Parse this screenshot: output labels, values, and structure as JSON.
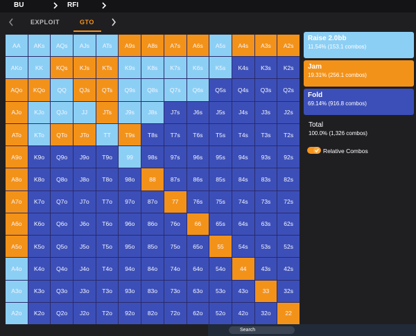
{
  "header": {
    "position": "BU",
    "spot": "RFI"
  },
  "tabs": [
    "EXPLOIT",
    "GTO"
  ],
  "grid": {
    "rows": [
      [
        {
          "label": "AA",
          "color": "#8ccff5"
        },
        {
          "label": "AKs",
          "color": "#8ccff5"
        },
        {
          "label": "AQs",
          "color": "#8ccff5"
        },
        {
          "label": "AJs",
          "color": "#8ccff5"
        },
        {
          "label": "ATs",
          "color": "#8ccff5"
        },
        {
          "label": "A9s",
          "color": "#f39219"
        },
        {
          "label": "A8s",
          "color": "#f39219"
        },
        {
          "label": "A7s",
          "color": "#f39219"
        },
        {
          "label": "A6s",
          "color": "#f39219"
        },
        {
          "label": "A5s",
          "color": "#8ccff5"
        },
        {
          "label": "A4s",
          "color": "#f39219"
        },
        {
          "label": "A3s",
          "color": "#f39219"
        },
        {
          "label": "A2s",
          "color": "#f39219"
        }
      ],
      [
        {
          "label": "AKo",
          "color": "#8ccff5"
        },
        {
          "label": "KK",
          "color": "#8ccff5"
        },
        {
          "label": "KQs",
          "color": "#f39219"
        },
        {
          "label": "KJs",
          "color": "#f39219"
        },
        {
          "label": "KTs",
          "color": "#f39219"
        },
        {
          "label": "K9s",
          "color": "#8ccff5"
        },
        {
          "label": "K8s",
          "color": "#8ccff5"
        },
        {
          "label": "K7s",
          "color": "#8ccff5"
        },
        {
          "label": "K6s",
          "color": "#8ccff5"
        },
        {
          "label": "K5s",
          "color": "#8ccff5"
        },
        {
          "label": "K4s",
          "color": "#3c4fb8"
        },
        {
          "label": "K3s",
          "color": "#3c4fb8"
        },
        {
          "label": "K2s",
          "color": "#3c4fb8"
        }
      ],
      [
        {
          "label": "AQo",
          "color": "#f39219"
        },
        {
          "label": "KQo",
          "color": "#f39219"
        },
        {
          "label": "QQ",
          "color": "#8ccff5"
        },
        {
          "label": "QJs",
          "color": "#f39219"
        },
        {
          "label": "QTs",
          "color": "#f39219"
        },
        {
          "label": "Q9s",
          "color": "#8ccff5"
        },
        {
          "label": "Q8s",
          "color": "#8ccff5"
        },
        {
          "label": "Q7s",
          "color": "#8ccff5"
        },
        {
          "label": "Q6s",
          "color": "#8ccff5"
        },
        {
          "label": "Q5s",
          "color": "#3c4fb8"
        },
        {
          "label": "Q4s",
          "color": "#3c4fb8"
        },
        {
          "label": "Q3s",
          "color": "#3c4fb8"
        },
        {
          "label": "Q2s",
          "color": "#3c4fb8"
        }
      ],
      [
        {
          "label": "AJo",
          "color": "#f39219"
        },
        {
          "label": "KJo",
          "color": "#8ccff5"
        },
        {
          "label": "QJo",
          "color": "#8ccff5"
        },
        {
          "label": "JJ",
          "color": "#8ccff5"
        },
        {
          "label": "JTs",
          "color": "#f39219"
        },
        {
          "label": "J9s",
          "color": "#8ccff5"
        },
        {
          "label": "J8s",
          "color": "#8ccff5"
        },
        {
          "label": "J7s",
          "color": "#3c4fb8"
        },
        {
          "label": "J6s",
          "color": "#3c4fb8"
        },
        {
          "label": "J5s",
          "color": "#3c4fb8"
        },
        {
          "label": "J4s",
          "color": "#3c4fb8"
        },
        {
          "label": "J3s",
          "color": "#3c4fb8"
        },
        {
          "label": "J2s",
          "color": "#3c4fb8"
        }
      ],
      [
        {
          "label": "ATo",
          "color": "#f39219"
        },
        {
          "label": "KTo",
          "color": "#8ccff5"
        },
        {
          "label": "QTo",
          "color": "#f39219"
        },
        {
          "label": "JTo",
          "color": "#f39219"
        },
        {
          "label": "TT",
          "color": "#8ccff5"
        },
        {
          "label": "T9s",
          "color": "#f39219"
        },
        {
          "label": "T8s",
          "color": "#3c4fb8"
        },
        {
          "label": "T7s",
          "color": "#3c4fb8"
        },
        {
          "label": "T6s",
          "color": "#3c4fb8"
        },
        {
          "label": "T5s",
          "color": "#3c4fb8"
        },
        {
          "label": "T4s",
          "color": "#3c4fb8"
        },
        {
          "label": "T3s",
          "color": "#3c4fb8"
        },
        {
          "label": "T2s",
          "color": "#3c4fb8"
        }
      ],
      [
        {
          "label": "A9o",
          "color": "#f39219"
        },
        {
          "label": "K9o",
          "color": "#3c4fb8"
        },
        {
          "label": "Q9o",
          "color": "#3c4fb8"
        },
        {
          "label": "J9o",
          "color": "#3c4fb8"
        },
        {
          "label": "T9o",
          "color": "#3c4fb8"
        },
        {
          "label": "99",
          "color": "#8ccff5"
        },
        {
          "label": "98s",
          "color": "#3c4fb8"
        },
        {
          "label": "97s",
          "color": "#3c4fb8"
        },
        {
          "label": "96s",
          "color": "#3c4fb8"
        },
        {
          "label": "95s",
          "color": "#3c4fb8"
        },
        {
          "label": "94s",
          "color": "#3c4fb8"
        },
        {
          "label": "93s",
          "color": "#3c4fb8"
        },
        {
          "label": "92s",
          "color": "#3c4fb8"
        }
      ],
      [
        {
          "label": "A8o",
          "color": "#f39219"
        },
        {
          "label": "K8o",
          "color": "#3c4fb8"
        },
        {
          "label": "Q8o",
          "color": "#3c4fb8"
        },
        {
          "label": "J8o",
          "color": "#3c4fb8"
        },
        {
          "label": "T8o",
          "color": "#3c4fb8"
        },
        {
          "label": "98o",
          "color": "#3c4fb8"
        },
        {
          "label": "88",
          "color": "#f39219"
        },
        {
          "label": "87s",
          "color": "#3c4fb8"
        },
        {
          "label": "86s",
          "color": "#3c4fb8"
        },
        {
          "label": "85s",
          "color": "#3c4fb8"
        },
        {
          "label": "84s",
          "color": "#3c4fb8"
        },
        {
          "label": "83s",
          "color": "#3c4fb8"
        },
        {
          "label": "82s",
          "color": "#3c4fb8"
        }
      ],
      [
        {
          "label": "A7o",
          "color": "#f39219"
        },
        {
          "label": "K7o",
          "color": "#3c4fb8"
        },
        {
          "label": "Q7o",
          "color": "#3c4fb8"
        },
        {
          "label": "J7o",
          "color": "#3c4fb8"
        },
        {
          "label": "T7o",
          "color": "#3c4fb8"
        },
        {
          "label": "97o",
          "color": "#3c4fb8"
        },
        {
          "label": "87o",
          "color": "#3c4fb8"
        },
        {
          "label": "77",
          "color": "#f39219"
        },
        {
          "label": "76s",
          "color": "#3c4fb8"
        },
        {
          "label": "75s",
          "color": "#3c4fb8"
        },
        {
          "label": "74s",
          "color": "#3c4fb8"
        },
        {
          "label": "73s",
          "color": "#3c4fb8"
        },
        {
          "label": "72s",
          "color": "#3c4fb8"
        }
      ],
      [
        {
          "label": "A6o",
          "color": "#f39219"
        },
        {
          "label": "K6o",
          "color": "#3c4fb8"
        },
        {
          "label": "Q6o",
          "color": "#3c4fb8"
        },
        {
          "label": "J6o",
          "color": "#3c4fb8"
        },
        {
          "label": "T6o",
          "color": "#3c4fb8"
        },
        {
          "label": "96o",
          "color": "#3c4fb8"
        },
        {
          "label": "86o",
          "color": "#3c4fb8"
        },
        {
          "label": "76o",
          "color": "#3c4fb8"
        },
        {
          "label": "66",
          "color": "#f39219"
        },
        {
          "label": "65s",
          "color": "#3c4fb8"
        },
        {
          "label": "64s",
          "color": "#3c4fb8"
        },
        {
          "label": "63s",
          "color": "#3c4fb8"
        },
        {
          "label": "62s",
          "color": "#3c4fb8"
        }
      ],
      [
        {
          "label": "A5o",
          "color": "#f39219"
        },
        {
          "label": "K5o",
          "color": "#3c4fb8"
        },
        {
          "label": "Q5o",
          "color": "#3c4fb8"
        },
        {
          "label": "J5o",
          "color": "#3c4fb8"
        },
        {
          "label": "T5o",
          "color": "#3c4fb8"
        },
        {
          "label": "95o",
          "color": "#3c4fb8"
        },
        {
          "label": "85o",
          "color": "#3c4fb8"
        },
        {
          "label": "75o",
          "color": "#3c4fb8"
        },
        {
          "label": "65o",
          "color": "#3c4fb8"
        },
        {
          "label": "55",
          "color": "#f39219"
        },
        {
          "label": "54s",
          "color": "#3c4fb8"
        },
        {
          "label": "53s",
          "color": "#3c4fb8"
        },
        {
          "label": "52s",
          "color": "#3c4fb8"
        }
      ],
      [
        {
          "label": "A4o",
          "color": "#8ccff5"
        },
        {
          "label": "K4o",
          "color": "#3c4fb8"
        },
        {
          "label": "Q4o",
          "color": "#3c4fb8"
        },
        {
          "label": "J4o",
          "color": "#3c4fb8"
        },
        {
          "label": "T4o",
          "color": "#3c4fb8"
        },
        {
          "label": "94o",
          "color": "#3c4fb8"
        },
        {
          "label": "84o",
          "color": "#3c4fb8"
        },
        {
          "label": "74o",
          "color": "#3c4fb8"
        },
        {
          "label": "64o",
          "color": "#3c4fb8"
        },
        {
          "label": "54o",
          "color": "#3c4fb8"
        },
        {
          "label": "44",
          "color": "#f39219"
        },
        {
          "label": "43s",
          "color": "#3c4fb8"
        },
        {
          "label": "42s",
          "color": "#3c4fb8"
        }
      ],
      [
        {
          "label": "A3o",
          "color": "#8ccff5"
        },
        {
          "label": "K3o",
          "color": "#3c4fb8"
        },
        {
          "label": "Q3o",
          "color": "#3c4fb8"
        },
        {
          "label": "J3o",
          "color": "#3c4fb8"
        },
        {
          "label": "T3o",
          "color": "#3c4fb8"
        },
        {
          "label": "93o",
          "color": "#3c4fb8"
        },
        {
          "label": "83o",
          "color": "#3c4fb8"
        },
        {
          "label": "73o",
          "color": "#3c4fb8"
        },
        {
          "label": "63o",
          "color": "#3c4fb8"
        },
        {
          "label": "53o",
          "color": "#3c4fb8"
        },
        {
          "label": "43o",
          "color": "#3c4fb8"
        },
        {
          "label": "33",
          "color": "#f39219"
        },
        {
          "label": "32s",
          "color": "#3c4fb8"
        }
      ],
      [
        {
          "label": "A2o",
          "color": "#8ccff5"
        },
        {
          "label": "K2o",
          "color": "#3c4fb8"
        },
        {
          "label": "Q2o",
          "color": "#3c4fb8"
        },
        {
          "label": "J2o",
          "color": "#3c4fb8"
        },
        {
          "label": "T2o",
          "color": "#3c4fb8"
        },
        {
          "label": "92o",
          "color": "#3c4fb8"
        },
        {
          "label": "82o",
          "color": "#3c4fb8"
        },
        {
          "label": "72o",
          "color": "#3c4fb8"
        },
        {
          "label": "62o",
          "color": "#3c4fb8"
        },
        {
          "label": "52o",
          "color": "#3c4fb8"
        },
        {
          "label": "42o",
          "color": "#3c4fb8"
        },
        {
          "label": "32o",
          "color": "#3c4fb8"
        },
        {
          "label": "22",
          "color": "#f39219"
        }
      ]
    ]
  },
  "legend": [
    {
      "name": "Raise 2.0bb",
      "detail": "11.54% (153.1 combos)",
      "color": "#8ccff5"
    },
    {
      "name": "Jam",
      "detail": "19.31% (256.1 combos)",
      "color": "#f39219"
    },
    {
      "name": "Fold",
      "detail": "69.14% (916.8 combos)",
      "color": "#3c4fb8"
    }
  ],
  "total": {
    "label": "Total",
    "detail": "100.0% (1,326 combos)"
  },
  "toggle": "Relative Combos",
  "taskbar": {
    "search": "Search"
  }
}
